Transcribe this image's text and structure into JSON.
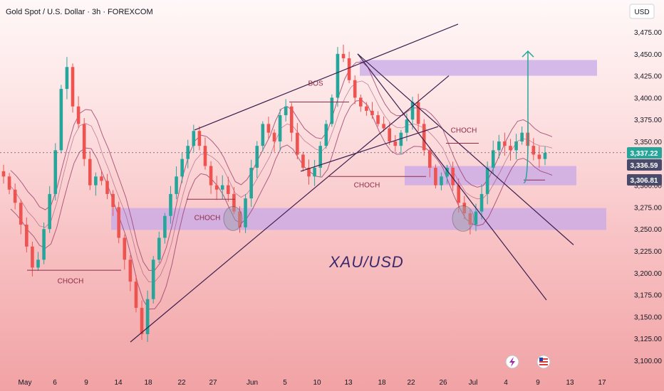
{
  "chart_data": {
    "type": "candlestick",
    "title": "Gold Spot / U.S. Dollar · 3h · FOREXCOM",
    "symbol_watermark": "XAU/USD",
    "currency": "USD",
    "ylim": [
      3090,
      3490
    ],
    "y_ticks": [
      "3,475.00",
      "3,450.00",
      "3,425.00",
      "3,400.00",
      "3,375.00",
      "3,350.00",
      "3,325.00",
      "3,300.00",
      "3,275.00",
      "3,250.00",
      "3,225.00",
      "3,200.00",
      "3,175.00",
      "3,150.00",
      "3,125.00",
      "3,100.00"
    ],
    "x_ticks": [
      "May",
      "6",
      "9",
      "14",
      "18",
      "22",
      "27",
      "Jun",
      "5",
      "10",
      "13",
      "18",
      "22",
      "26",
      "Jul",
      "4",
      "9",
      "13",
      "17"
    ],
    "price_tags": [
      {
        "label": "3,337.22",
        "value": 3337.22,
        "color": "#26a69a"
      },
      {
        "label": "3,336.59",
        "value": 3336.59,
        "color": "#4a4a6a"
      },
      {
        "label": "3,306.81",
        "value": 3306.81,
        "color": "#4a4a6a"
      }
    ],
    "annotations": [
      {
        "text": "CHOCH",
        "near_price": 3198
      },
      {
        "text": "CHOCH",
        "near_price": 3267
      },
      {
        "text": "BOS",
        "near_price": 3409
      },
      {
        "text": "CHOCH",
        "near_price": 3309
      },
      {
        "text": "CHOCH",
        "near_price": 3357
      }
    ],
    "zones": [
      {
        "label": "upper supply zone",
        "range": [
          3425,
          3443
        ]
      },
      {
        "label": "middle demand zone",
        "range": [
          3300,
          3322
        ]
      },
      {
        "label": "lower demand zone",
        "range": [
          3249,
          3274
        ]
      }
    ],
    "candles_close_path": [
      3310,
      3295,
      3280,
      3255,
      3230,
      3206,
      3215,
      3250,
      3290,
      3340,
      3410,
      3435,
      3390,
      3370,
      3330,
      3300,
      3310,
      3305,
      3290,
      3275,
      3240,
      3215,
      3190,
      3160,
      3130,
      3170,
      3215,
      3240,
      3265,
      3290,
      3310,
      3330,
      3345,
      3362,
      3345,
      3322,
      3300,
      3295,
      3300,
      3290,
      3270,
      3252,
      3285,
      3320,
      3345,
      3370,
      3360,
      3350,
      3380,
      3390,
      3360,
      3335,
      3320,
      3310,
      3320,
      3345,
      3370,
      3400,
      3450,
      3445,
      3420,
      3400,
      3390,
      3385,
      3380,
      3370,
      3365,
      3350,
      3345,
      3360,
      3375,
      3395,
      3370,
      3340,
      3320,
      3300,
      3310,
      3320,
      3300,
      3280,
      3268,
      3255,
      3270,
      3290,
      3320,
      3340,
      3350,
      3345,
      3340,
      3350,
      3360,
      3345,
      3335,
      3330,
      3337
    ]
  },
  "colors": {
    "bull": "#26a69a",
    "bear": "#ef5350",
    "zone": "#c7a8e8",
    "trendline": "#3b1f4e",
    "ichimoku": "#9b3d6b"
  }
}
